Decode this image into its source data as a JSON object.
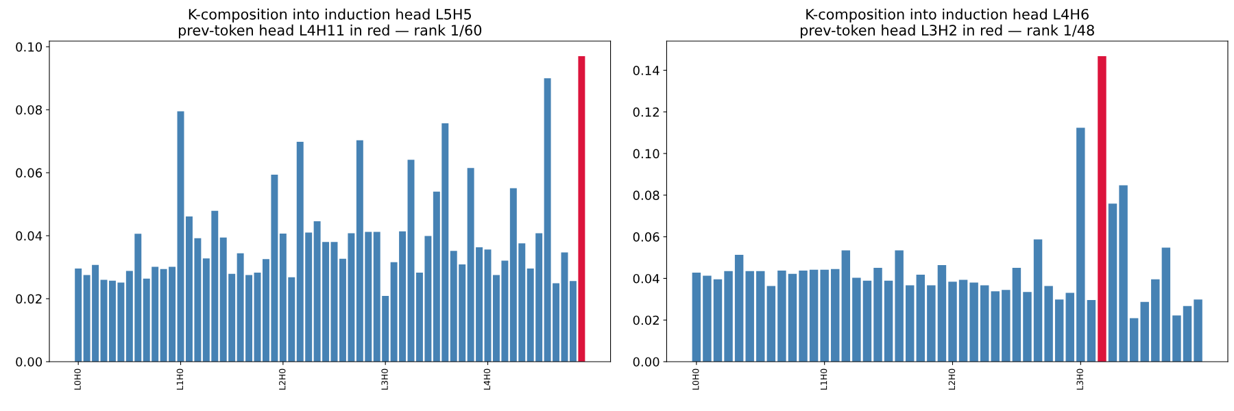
{
  "chart_data": [
    {
      "type": "bar",
      "title": "K-composition into induction head L5H5\nprev-token head L4H11 in red — rank 1/60",
      "categories": [
        "L0H0",
        null,
        null,
        null,
        null,
        null,
        null,
        null,
        null,
        null,
        null,
        null,
        "L1H0",
        null,
        null,
        null,
        null,
        null,
        null,
        null,
        null,
        null,
        null,
        null,
        "L2H0",
        null,
        null,
        null,
        null,
        null,
        null,
        null,
        null,
        null,
        null,
        null,
        "L3H0",
        null,
        null,
        null,
        null,
        null,
        null,
        null,
        null,
        null,
        null,
        null,
        "L4H0",
        null,
        null,
        null,
        null,
        null,
        null,
        null,
        null,
        null,
        null,
        null
      ],
      "values": [
        0.0296,
        0.0275,
        0.0307,
        0.026,
        0.0257,
        0.0251,
        0.0288,
        0.0406,
        0.0264,
        0.0301,
        0.0294,
        0.0301,
        0.0795,
        0.0461,
        0.0392,
        0.0328,
        0.0479,
        0.0394,
        0.0279,
        0.0344,
        0.0275,
        0.0283,
        0.0326,
        0.0594,
        0.0407,
        0.0268,
        0.0698,
        0.041,
        0.0446,
        0.038,
        0.038,
        0.0327,
        0.0408,
        0.0703,
        0.0412,
        0.0412,
        0.0209,
        0.0316,
        0.0414,
        0.0641,
        0.0283,
        0.0399,
        0.054,
        0.0757,
        0.0352,
        0.0309,
        0.0615,
        0.0363,
        0.0356,
        0.0275,
        0.0321,
        0.0551,
        0.0376,
        0.0296,
        0.0408,
        0.09,
        0.0249,
        0.0347,
        0.0256,
        0.097
      ],
      "colors": [
        "#4682b4",
        "#4682b4",
        "#4682b4",
        "#4682b4",
        "#4682b4",
        "#4682b4",
        "#4682b4",
        "#4682b4",
        "#4682b4",
        "#4682b4",
        "#4682b4",
        "#4682b4",
        "#4682b4",
        "#4682b4",
        "#4682b4",
        "#4682b4",
        "#4682b4",
        "#4682b4",
        "#4682b4",
        "#4682b4",
        "#4682b4",
        "#4682b4",
        "#4682b4",
        "#4682b4",
        "#4682b4",
        "#4682b4",
        "#4682b4",
        "#4682b4",
        "#4682b4",
        "#4682b4",
        "#4682b4",
        "#4682b4",
        "#4682b4",
        "#4682b4",
        "#4682b4",
        "#4682b4",
        "#4682b4",
        "#4682b4",
        "#4682b4",
        "#4682b4",
        "#4682b4",
        "#4682b4",
        "#4682b4",
        "#4682b4",
        "#4682b4",
        "#4682b4",
        "#4682b4",
        "#4682b4",
        "#4682b4",
        "#4682b4",
        "#4682b4",
        "#4682b4",
        "#4682b4",
        "#4682b4",
        "#4682b4",
        "#4682b4",
        "#4682b4",
        "#4682b4",
        "#4682b4",
        "#dc143c"
      ],
      "ylim": [
        0,
        0.1018
      ],
      "yticks": [
        {
          "value": 0,
          "label": "0.00"
        },
        {
          "value": 0.02,
          "label": "0.02"
        },
        {
          "value": 0.04,
          "label": "0.04"
        },
        {
          "value": 0.06,
          "label": "0.06"
        },
        {
          "value": 0.08,
          "label": "0.08"
        },
        {
          "value": 0.1,
          "label": "0.10"
        }
      ]
    },
    {
      "type": "bar",
      "title": "K-composition into induction head L4H6\nprev-token head L3H2 in red — rank 1/48",
      "categories": [
        "L0H0",
        null,
        null,
        null,
        null,
        null,
        null,
        null,
        null,
        null,
        null,
        null,
        "L1H0",
        null,
        null,
        null,
        null,
        null,
        null,
        null,
        null,
        null,
        null,
        null,
        "L2H0",
        null,
        null,
        null,
        null,
        null,
        null,
        null,
        null,
        null,
        null,
        null,
        "L3H0",
        null,
        null,
        null,
        null,
        null,
        null,
        null,
        null,
        null,
        null,
        null
      ],
      "values": [
        0.0428,
        0.0413,
        0.0396,
        0.0435,
        0.0513,
        0.0435,
        0.0435,
        0.0364,
        0.0438,
        0.0422,
        0.0438,
        0.0442,
        0.0442,
        0.0445,
        0.0535,
        0.0403,
        0.0389,
        0.0451,
        0.0389,
        0.0535,
        0.0367,
        0.0418,
        0.0367,
        0.0464,
        0.0384,
        0.0393,
        0.038,
        0.0367,
        0.0338,
        0.0345,
        0.0451,
        0.0335,
        0.0587,
        0.0364,
        0.0299,
        0.0331,
        0.1124,
        0.0296,
        0.1468,
        0.0759,
        0.0847,
        0.0209,
        0.0287,
        0.0396,
        0.0548,
        0.0222,
        0.0267,
        0.0299
      ],
      "colors": [
        "#4682b4",
        "#4682b4",
        "#4682b4",
        "#4682b4",
        "#4682b4",
        "#4682b4",
        "#4682b4",
        "#4682b4",
        "#4682b4",
        "#4682b4",
        "#4682b4",
        "#4682b4",
        "#4682b4",
        "#4682b4",
        "#4682b4",
        "#4682b4",
        "#4682b4",
        "#4682b4",
        "#4682b4",
        "#4682b4",
        "#4682b4",
        "#4682b4",
        "#4682b4",
        "#4682b4",
        "#4682b4",
        "#4682b4",
        "#4682b4",
        "#4682b4",
        "#4682b4",
        "#4682b4",
        "#4682b4",
        "#4682b4",
        "#4682b4",
        "#4682b4",
        "#4682b4",
        "#4682b4",
        "#4682b4",
        "#4682b4",
        "#dc143c",
        "#4682b4",
        "#4682b4",
        "#4682b4",
        "#4682b4",
        "#4682b4",
        "#4682b4",
        "#4682b4",
        "#4682b4",
        "#4682b4"
      ],
      "ylim": [
        0,
        0.154
      ],
      "yticks": [
        {
          "value": 0,
          "label": "0.00"
        },
        {
          "value": 0.02,
          "label": "0.02"
        },
        {
          "value": 0.04,
          "label": "0.04"
        },
        {
          "value": 0.06,
          "label": "0.06"
        },
        {
          "value": 0.08,
          "label": "0.08"
        },
        {
          "value": 0.1,
          "label": "0.10"
        },
        {
          "value": 0.12,
          "label": "0.12"
        },
        {
          "value": 0.14,
          "label": "0.14"
        }
      ]
    }
  ]
}
